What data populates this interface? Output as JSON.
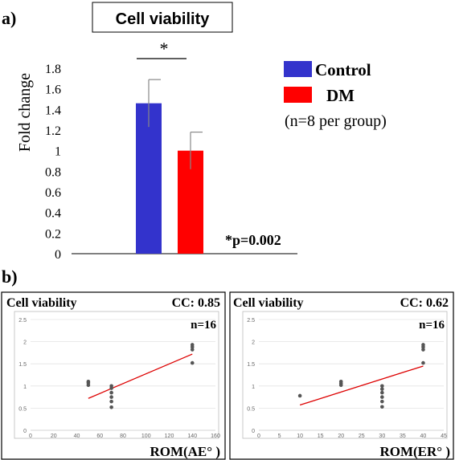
{
  "panel_a": {
    "label": "a)",
    "significance_marker": "*",
    "p_value_text": "*p=0.002",
    "n_text": "(n=8 per group)",
    "chart_data": {
      "type": "bar",
      "title": "Cell viability",
      "xlabel": "",
      "ylabel": "Fold change",
      "ylim": [
        0,
        1.8
      ],
      "yticks": [
        "0",
        "0.2",
        "0.4",
        "0.6",
        "0.8",
        "1",
        "1.2",
        "1.4",
        "1.6",
        "1.8"
      ],
      "grid": false,
      "legend_position": "right",
      "categories": [
        "Control",
        "DM"
      ],
      "values": [
        1.46,
        1.0
      ],
      "error": [
        0.23,
        0.18
      ],
      "colors": [
        "#3333cc",
        "#ff0000"
      ]
    }
  },
  "panel_b": {
    "label": "b)",
    "charts": [
      {
        "type": "scatter",
        "title": "Cell viability",
        "cc_text": "CC: 0.85",
        "n_text": "n=16",
        "xlabel": "ROM(AE° )",
        "ylabel": "",
        "xlim": [
          0,
          160
        ],
        "ylim": [
          0,
          2.5
        ],
        "xticks": [
          "0",
          "20",
          "40",
          "60",
          "80",
          "100",
          "120",
          "140",
          "160"
        ],
        "yticks": [
          "0",
          "0.5",
          "1",
          "1.5",
          "2",
          "2.5"
        ],
        "grid": true,
        "points": [
          [
            50,
            1.1
          ],
          [
            50,
            1.07
          ],
          [
            50,
            1.02
          ],
          [
            70,
            1.0
          ],
          [
            70,
            0.95
          ],
          [
            70,
            0.85
          ],
          [
            70,
            0.75
          ],
          [
            70,
            0.65
          ],
          [
            70,
            0.52
          ],
          [
            140,
            1.93
          ],
          [
            140,
            1.88
          ],
          [
            140,
            1.82
          ],
          [
            140,
            1.52
          ]
        ],
        "trendline": [
          [
            50,
            0.72
          ],
          [
            140,
            1.72
          ]
        ],
        "trend_color": "#dd0000",
        "point_color": "#555555"
      },
      {
        "type": "scatter",
        "title": "Cell viability",
        "cc_text": "CC: 0.62",
        "n_text": "n=16",
        "xlabel": "ROM(ER° )",
        "ylabel": "",
        "xlim": [
          0,
          45
        ],
        "ylim": [
          0,
          2.5
        ],
        "xticks": [
          "0",
          "5",
          "10",
          "15",
          "20",
          "25",
          "30",
          "35",
          "40",
          "45"
        ],
        "yticks": [
          "0",
          "0.5",
          "1",
          "1.5",
          "2",
          "2.5"
        ],
        "grid": true,
        "points": [
          [
            10,
            0.78
          ],
          [
            20,
            1.1
          ],
          [
            20,
            1.06
          ],
          [
            20,
            1.02
          ],
          [
            30,
            1.0
          ],
          [
            30,
            0.93
          ],
          [
            30,
            0.85
          ],
          [
            30,
            0.75
          ],
          [
            30,
            0.65
          ],
          [
            30,
            0.53
          ],
          [
            40,
            1.93
          ],
          [
            40,
            1.88
          ],
          [
            40,
            1.82
          ],
          [
            40,
            1.52
          ]
        ],
        "trendline": [
          [
            10,
            0.57
          ],
          [
            40,
            1.45
          ]
        ],
        "trend_color": "#dd0000",
        "point_color": "#555555"
      }
    ]
  }
}
